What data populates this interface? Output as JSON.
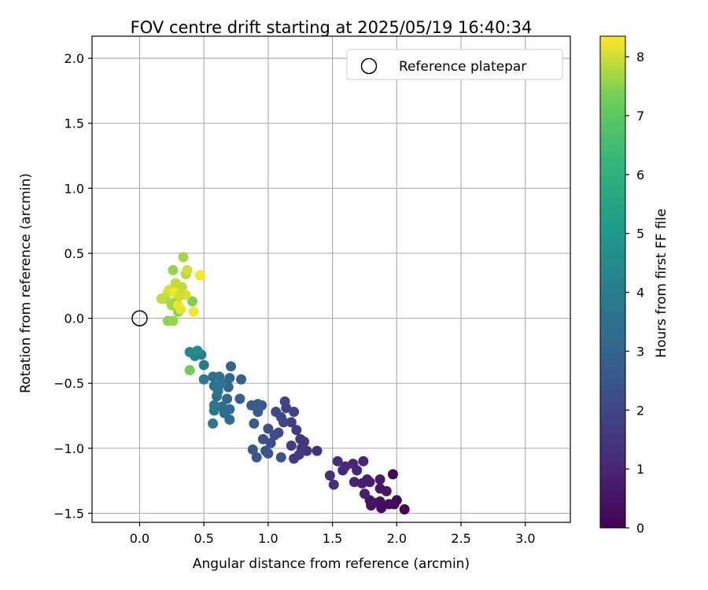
{
  "chart_data": {
    "type": "scatter",
    "title": "FOV centre drift starting at 2025/05/19 16:40:34",
    "xlabel": "Angular distance from reference (arcmin)",
    "ylabel": "Rotation from reference (arcmin)",
    "xlim": [
      -0.37,
      3.35
    ],
    "ylim": [
      -1.57,
      2.17
    ],
    "xticks": [
      0.0,
      0.5,
      1.0,
      1.5,
      2.0,
      2.5,
      3.0
    ],
    "xtick_labels": [
      "0.0",
      "0.5",
      "1.0",
      "1.5",
      "2.0",
      "2.5",
      "3.0"
    ],
    "yticks": [
      -1.5,
      -1.0,
      -0.5,
      0.0,
      0.5,
      1.0,
      1.5,
      2.0
    ],
    "ytick_labels": [
      "−1.5",
      "−1.0",
      "−0.5",
      "0.0",
      "0.5",
      "1.0",
      "1.5",
      "2.0"
    ],
    "grid": true,
    "legend": {
      "placement": "top-right",
      "entries": [
        "Reference platepar"
      ]
    },
    "reference_point": {
      "x": 0.0,
      "y": 0.0
    },
    "colorbar": {
      "label": "Hours from first FF file",
      "range": [
        0,
        8.35
      ],
      "ticks": [
        0,
        1,
        2,
        3,
        4,
        5,
        6,
        7,
        8
      ],
      "tick_labels": [
        "0",
        "1",
        "2",
        "3",
        "4",
        "5",
        "6",
        "7",
        "8"
      ],
      "colormap": "viridis"
    },
    "points": [
      [
        2.06,
        -1.47,
        0.05
      ],
      [
        1.98,
        -1.43,
        0.1
      ],
      [
        2.0,
        -1.4,
        0.15
      ],
      [
        1.97,
        -1.2,
        0.2
      ],
      [
        1.94,
        -1.43,
        0.25
      ],
      [
        1.88,
        -1.46,
        0.3
      ],
      [
        1.87,
        -1.41,
        0.35
      ],
      [
        1.82,
        -1.42,
        0.4
      ],
      [
        1.8,
        -1.44,
        0.45
      ],
      [
        1.79,
        -1.4,
        0.5
      ],
      [
        1.92,
        -1.33,
        0.55
      ],
      [
        1.87,
        -1.31,
        0.6
      ],
      [
        1.87,
        -1.24,
        0.65
      ],
      [
        1.79,
        -1.26,
        0.7
      ],
      [
        1.77,
        -1.24,
        0.75
      ],
      [
        1.73,
        -1.27,
        0.8
      ],
      [
        1.75,
        -1.35,
        0.85
      ],
      [
        1.67,
        -1.26,
        0.9
      ],
      [
        1.74,
        -1.1,
        0.95
      ],
      [
        1.69,
        -1.17,
        1.0
      ],
      [
        1.66,
        -1.12,
        1.05
      ],
      [
        1.6,
        -1.14,
        1.1
      ],
      [
        1.58,
        -1.17,
        1.15
      ],
      [
        1.54,
        -1.1,
        1.2
      ],
      [
        1.51,
        -1.28,
        1.25
      ],
      [
        1.48,
        -1.21,
        1.3
      ],
      [
        1.38,
        -1.02,
        1.35
      ],
      [
        1.3,
        -1.02,
        1.4
      ],
      [
        1.28,
        -0.95,
        1.45
      ],
      [
        1.26,
        -1.0,
        1.5
      ],
      [
        1.25,
        -0.93,
        1.55
      ],
      [
        1.24,
        -1.05,
        1.6
      ],
      [
        1.2,
        -1.08,
        1.65
      ],
      [
        1.18,
        -0.98,
        1.7
      ],
      [
        1.22,
        -0.86,
        1.75
      ],
      [
        1.18,
        -0.8,
        1.8
      ],
      [
        1.14,
        -0.69,
        1.85
      ],
      [
        1.2,
        -0.72,
        1.9
      ],
      [
        1.13,
        -0.64,
        1.95
      ],
      [
        1.12,
        -0.8,
        2.0
      ],
      [
        1.1,
        -0.76,
        2.05
      ],
      [
        1.06,
        -0.72,
        2.1
      ],
      [
        1.08,
        -0.88,
        2.15
      ],
      [
        1.05,
        -0.9,
        2.2
      ],
      [
        1.02,
        -0.96,
        2.25
      ],
      [
        1.0,
        -0.85,
        2.3
      ],
      [
        0.98,
        -1.02,
        2.35
      ],
      [
        0.96,
        -0.93,
        2.4
      ],
      [
        1.1,
        -1.07,
        2.45
      ],
      [
        1.0,
        -1.04,
        2.5
      ],
      [
        0.88,
        -1.01,
        2.55
      ],
      [
        0.91,
        -1.07,
        2.6
      ],
      [
        0.95,
        -0.67,
        2.65
      ],
      [
        0.92,
        -0.72,
        2.7
      ],
      [
        0.89,
        -0.81,
        2.75
      ],
      [
        0.87,
        -0.67,
        2.8
      ],
      [
        0.92,
        -0.66,
        2.85
      ],
      [
        0.78,
        -0.62,
        2.9
      ],
      [
        0.79,
        -0.47,
        2.95
      ],
      [
        0.71,
        -0.37,
        3.0
      ],
      [
        0.7,
        -0.46,
        3.05
      ],
      [
        0.69,
        -0.53,
        3.1
      ],
      [
        0.68,
        -0.62,
        3.15
      ],
      [
        0.7,
        -0.7,
        3.2
      ],
      [
        0.7,
        -0.78,
        3.25
      ],
      [
        0.66,
        -0.73,
        3.3
      ],
      [
        0.64,
        -0.68,
        3.35
      ],
      [
        0.6,
        -0.6,
        3.4
      ],
      [
        0.58,
        -0.52,
        3.45
      ],
      [
        0.57,
        -0.45,
        3.5
      ],
      [
        0.62,
        -0.45,
        3.55
      ],
      [
        0.64,
        -0.5,
        3.6
      ],
      [
        0.61,
        -0.56,
        3.65
      ],
      [
        0.58,
        -0.67,
        3.7
      ],
      [
        0.58,
        -0.71,
        3.75
      ],
      [
        0.57,
        -0.81,
        3.8
      ],
      [
        0.5,
        -0.47,
        3.85
      ],
      [
        0.5,
        -0.36,
        3.9
      ],
      [
        0.48,
        -0.28,
        4.0
      ],
      [
        0.43,
        -0.29,
        4.2
      ],
      [
        0.39,
        -0.26,
        4.4
      ],
      [
        0.45,
        -0.25,
        4.6
      ],
      [
        0.39,
        -0.4,
        7.3
      ],
      [
        0.41,
        0.13,
        7.4
      ],
      [
        0.3,
        0.05,
        7.5
      ],
      [
        0.27,
        0.12,
        7.6
      ],
      [
        0.25,
        0.1,
        7.7
      ],
      [
        0.22,
        -0.02,
        7.5
      ],
      [
        0.26,
        -0.02,
        7.6
      ],
      [
        0.2,
        0.15,
        7.8
      ],
      [
        0.17,
        0.15,
        7.9
      ],
      [
        0.22,
        0.2,
        8.0
      ],
      [
        0.23,
        0.22,
        8.1
      ],
      [
        0.28,
        0.27,
        7.9
      ],
      [
        0.26,
        0.37,
        7.6
      ],
      [
        0.34,
        0.47,
        7.7
      ],
      [
        0.36,
        0.34,
        7.8
      ],
      [
        0.37,
        0.37,
        8.0
      ],
      [
        0.33,
        0.24,
        7.9
      ],
      [
        0.36,
        0.18,
        8.1
      ],
      [
        0.32,
        0.07,
        8.2
      ],
      [
        0.3,
        0.1,
        8.2
      ],
      [
        0.42,
        0.05,
        8.3
      ],
      [
        0.47,
        0.33,
        8.3
      ],
      [
        0.27,
        0.2,
        8.25
      ],
      [
        0.31,
        0.17,
        8.0
      ]
    ]
  }
}
